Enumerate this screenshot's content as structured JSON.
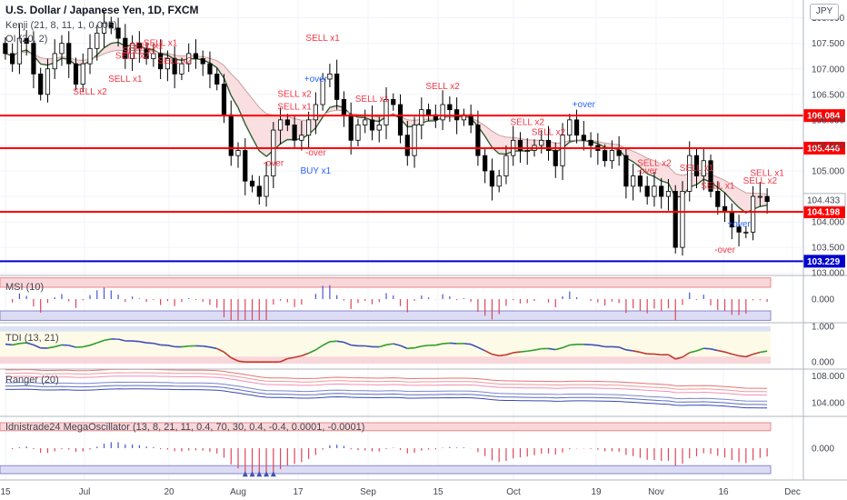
{
  "header": {
    "title": "U.S. Dollar / Japanese Yen, 1D, FXCM",
    "currency": "JPY",
    "kenji": "Kenji (21, 8, 11, 1, 0.005)",
    "oi": "OI (20, 2)"
  },
  "panes": {
    "msi": "MSI (10)",
    "tdi": "TDI (13, 21)",
    "ranger": "Ranger (20)",
    "mega": "Idnistrade24 MegaOscillator (13, 8, 21, 11, 0.4, 70, 30, 0.4, -0.4, 0.0001, -0.0001)"
  },
  "colors": {
    "up": "#ffffff",
    "down": "#000000",
    "level_red": "#ff0000",
    "level_blue": "#0000cc",
    "signal_red": "#f23645",
    "signal_blue": "#2962ff",
    "band_pink": "#f8d7da",
    "band_blue": "#dcdcf5"
  },
  "chart_data": {
    "type": "candlestick",
    "symbol": "USDJPY",
    "timeframe": "1D",
    "x_labels": [
      "15",
      "Jul",
      "20",
      "Aug",
      "17",
      "Sep",
      "15",
      "Oct",
      "19",
      "Nov",
      "16",
      "Dec"
    ],
    "y_ticks": [
      "108.000",
      "107.500",
      "107.000",
      "106.500",
      "106.000",
      "105.500",
      "105.000",
      "104.500",
      "104.000",
      "103.500",
      "103.000"
    ],
    "y_range": [
      102.95,
      108.35
    ],
    "levels": [
      {
        "value": 106.084,
        "label": "106.084",
        "color": "#ff0000"
      },
      {
        "value": 105.446,
        "label": "105.446",
        "color": "#ff0000"
      },
      {
        "value": 104.198,
        "label": "104.198",
        "color": "#ff0000"
      },
      {
        "value": 103.229,
        "label": "103.229",
        "color": "#0000cc"
      }
    ],
    "last_price": "104.433",
    "closes": [
      107.3,
      107.1,
      107.6,
      107.5,
      106.9,
      106.5,
      107.0,
      107.3,
      107.5,
      107.1,
      106.7,
      107.1,
      107.4,
      107.7,
      107.9,
      107.8,
      107.6,
      107.2,
      107.5,
      107.4,
      107.2,
      107.3,
      107.0,
      107.2,
      106.9,
      107.1,
      107.3,
      107.2,
      107.1,
      106.9,
      106.7,
      106.1,
      105.3,
      105.4,
      104.8,
      104.7,
      104.5,
      104.9,
      105.8,
      106.0,
      105.9,
      105.6,
      105.7,
      106.0,
      106.3,
      106.8,
      106.9,
      106.4,
      106.1,
      105.6,
      105.9,
      106.0,
      105.8,
      105.9,
      106.4,
      106.3,
      105.7,
      105.3,
      105.9,
      106.2,
      106.1,
      106.0,
      106.3,
      106.2,
      106.0,
      106.1,
      105.9,
      105.3,
      105.0,
      104.7,
      104.9,
      105.3,
      105.6,
      105.4,
      105.4,
      105.5,
      105.6,
      105.4,
      105.1,
      105.7,
      106.0,
      105.7,
      105.6,
      105.5,
      105.4,
      105.2,
      105.4,
      105.3,
      104.7,
      104.9,
      104.7,
      104.5,
      104.7,
      104.5,
      104.6,
      103.5,
      104.6,
      105.3,
      104.9,
      105.2,
      104.6,
      104.3,
      104.2,
      103.9,
      103.8,
      103.8,
      104.5,
      104.5,
      104.4
    ],
    "signals": [
      {
        "text": "SELL x2",
        "color": "red"
      },
      {
        "text": "SELL x1",
        "color": "red"
      },
      {
        "text": "SELL x1",
        "color": "red"
      },
      {
        "text": "SELL x2",
        "color": "red"
      },
      {
        "text": "SELL x1",
        "color": "red"
      },
      {
        "text": "SELL x1",
        "color": "red"
      },
      {
        "text": "SELL x2",
        "color": "red"
      },
      {
        "text": "SELL x2",
        "color": "red"
      },
      {
        "text": "SELL x1",
        "color": "red"
      },
      {
        "text": "+over",
        "color": "blue"
      },
      {
        "text": "SELL x1",
        "color": "red"
      },
      {
        "text": "-over",
        "color": "red"
      },
      {
        "text": "SELL x1",
        "color": "red"
      },
      {
        "text": "BUY x1",
        "color": "blue"
      },
      {
        "text": "-over",
        "color": "red"
      },
      {
        "text": "SELL x2",
        "color": "red"
      },
      {
        "text": "SELL x2",
        "color": "red"
      },
      {
        "text": "SELL x2",
        "color": "red"
      },
      {
        "text": "+over",
        "color": "blue"
      },
      {
        "text": "SELL x2",
        "color": "red"
      },
      {
        "text": "-over",
        "color": "red"
      },
      {
        "text": "+over",
        "color": "blue"
      },
      {
        "text": "SELL x1",
        "color": "red"
      },
      {
        "text": "SELL x1",
        "color": "red"
      },
      {
        "text": "-over",
        "color": "red"
      },
      {
        "text": "SELL x2",
        "color": "red"
      },
      {
        "text": "SELL x1",
        "color": "red"
      }
    ],
    "msi": {
      "y_ticks": [
        "0.000"
      ],
      "y_range": [
        -1,
        1
      ]
    },
    "tdi": {
      "y_ticks": [
        "1.000",
        "0.000"
      ],
      "y_range": [
        -0.2,
        1.1
      ]
    },
    "ranger": {
      "y_ticks": [
        "108.000",
        "104.000"
      ],
      "y_range": [
        102.0,
        109.0
      ]
    },
    "mega": {
      "y_ticks": [
        "0.000"
      ],
      "y_range": [
        -1,
        1
      ]
    }
  }
}
